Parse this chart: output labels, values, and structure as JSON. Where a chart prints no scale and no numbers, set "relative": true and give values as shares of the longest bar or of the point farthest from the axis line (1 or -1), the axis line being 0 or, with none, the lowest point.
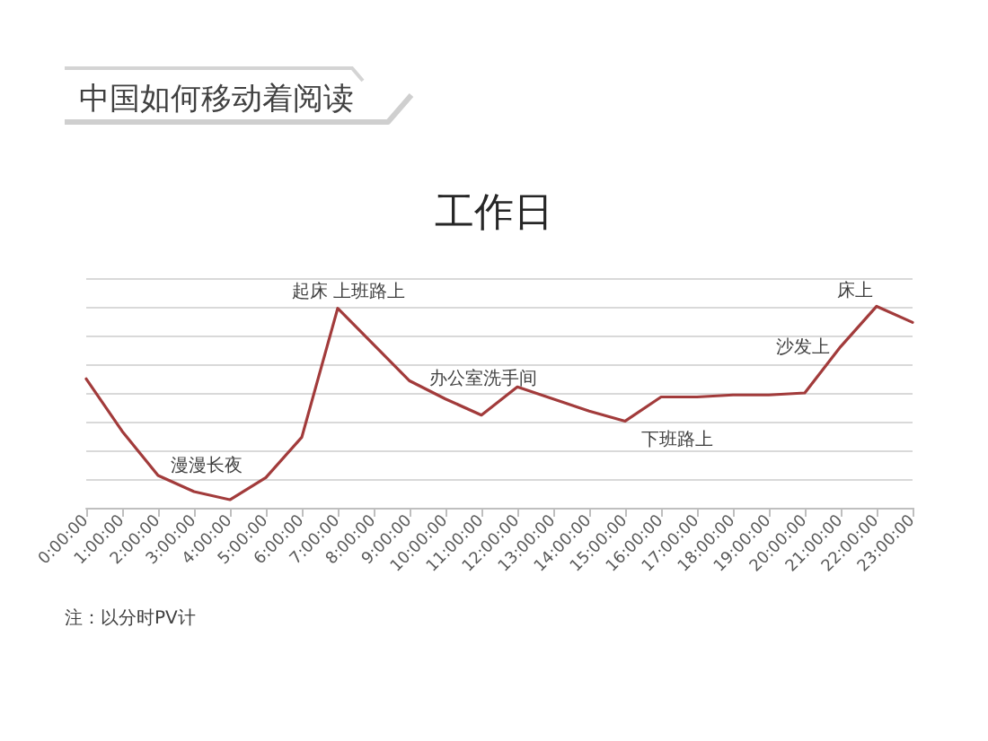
{
  "chart_data": {
    "type": "line",
    "title": "中国如何移动着阅读",
    "subtitle": "工作日",
    "categories": [
      "0:00:00",
      "1:00:00",
      "2:00:00",
      "3:00:00",
      "4:00:00",
      "5:00:00",
      "6:00:00",
      "7:00:00",
      "8:00:00",
      "9:00:00",
      "10:00:00",
      "11:00:00",
      "12:00:00",
      "13:00:00",
      "14:00:00",
      "15:00:00",
      "16:00:00",
      "17:00:00",
      "18:00:00",
      "19:00:00",
      "20:00:00",
      "21:00:00",
      "22:00:00",
      "23:00:00"
    ],
    "values": [
      0.64,
      0.38,
      0.16,
      0.08,
      0.04,
      0.15,
      0.35,
      0.99,
      0.81,
      0.63,
      0.54,
      0.46,
      0.6,
      0.54,
      0.48,
      0.43,
      0.55,
      0.55,
      0.56,
      0.56,
      0.57,
      0.8,
      1,
      0.92
    ],
    "color": "#a23b3b",
    "relative": true,
    "grid": "y",
    "marker": "none",
    "line_style": "solid",
    "annotations": [
      {
        "text": "漫漫长夜",
        "x": "3:00:00",
        "y": 0.08
      },
      {
        "text": "起床 上班路上",
        "x": "7:00:00",
        "y": 0.99
      },
      {
        "text": "办公室洗手间",
        "x": "12:00:00",
        "y": 0.6
      },
      {
        "text": "下班路上",
        "x": "15:00:00",
        "y": 0.43
      },
      {
        "text": "沙发上",
        "x": "21:00:00",
        "y": 0.8
      },
      {
        "text": "床上",
        "x": "22:00:00",
        "y": 1
      },
      "注：以分时PV计"
    ]
  }
}
